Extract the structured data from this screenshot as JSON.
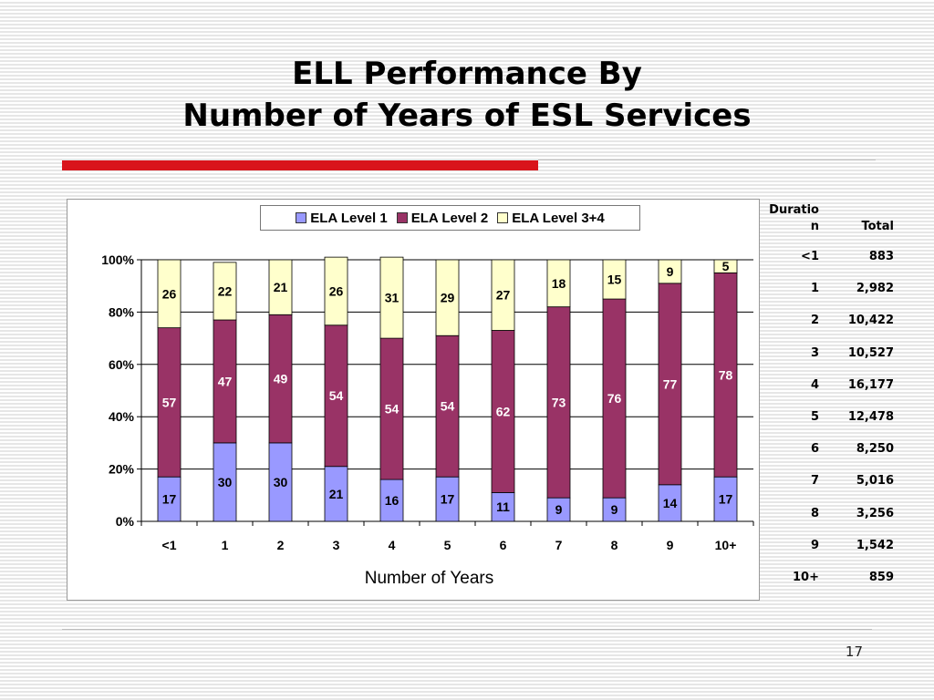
{
  "slide": {
    "title_line1": "ELL Performance By",
    "title_line2": "Number of Years of ESL Services",
    "page_number": "17"
  },
  "side_table": {
    "header_duration_1": "Duratio",
    "header_duration_2": "n",
    "header_total": "Total",
    "rows": [
      {
        "duration": "<1",
        "total": "883"
      },
      {
        "duration": "1",
        "total": "2,982"
      },
      {
        "duration": "2",
        "total": "10,422"
      },
      {
        "duration": "3",
        "total": "10,527"
      },
      {
        "duration": "4",
        "total": "16,177"
      },
      {
        "duration": "5",
        "total": "12,478"
      },
      {
        "duration": "6",
        "total": "8,250"
      },
      {
        "duration": "7",
        "total": "5,016"
      },
      {
        "duration": "8",
        "total": "3,256"
      },
      {
        "duration": "9",
        "total": "1,542"
      },
      {
        "duration": "10+",
        "total": "859"
      }
    ]
  },
  "chart_data": {
    "type": "bar",
    "stacked": true,
    "percent": true,
    "categories": [
      "<1",
      "1",
      "2",
      "3",
      "4",
      "5",
      "6",
      "7",
      "8",
      "9",
      "10+"
    ],
    "series": [
      {
        "name": "ELA Level 1",
        "color": "#9999ff",
        "values": [
          17,
          30,
          30,
          21,
          16,
          17,
          11,
          9,
          9,
          14,
          17
        ]
      },
      {
        "name": "ELA Level 2",
        "color": "#993366",
        "values": [
          57,
          47,
          49,
          54,
          54,
          54,
          62,
          73,
          76,
          77,
          78
        ]
      },
      {
        "name": "ELA Level 3+4",
        "color": "#ffffcc",
        "values": [
          26,
          22,
          21,
          26,
          31,
          29,
          27,
          18,
          15,
          9,
          5
        ]
      }
    ],
    "xlabel": "Number of Years",
    "ylabel": "",
    "ylim": [
      0,
      100
    ],
    "yticks": [
      "0%",
      "20%",
      "40%",
      "60%",
      "80%",
      "100%"
    ],
    "grid": true,
    "legend_position": "top"
  }
}
